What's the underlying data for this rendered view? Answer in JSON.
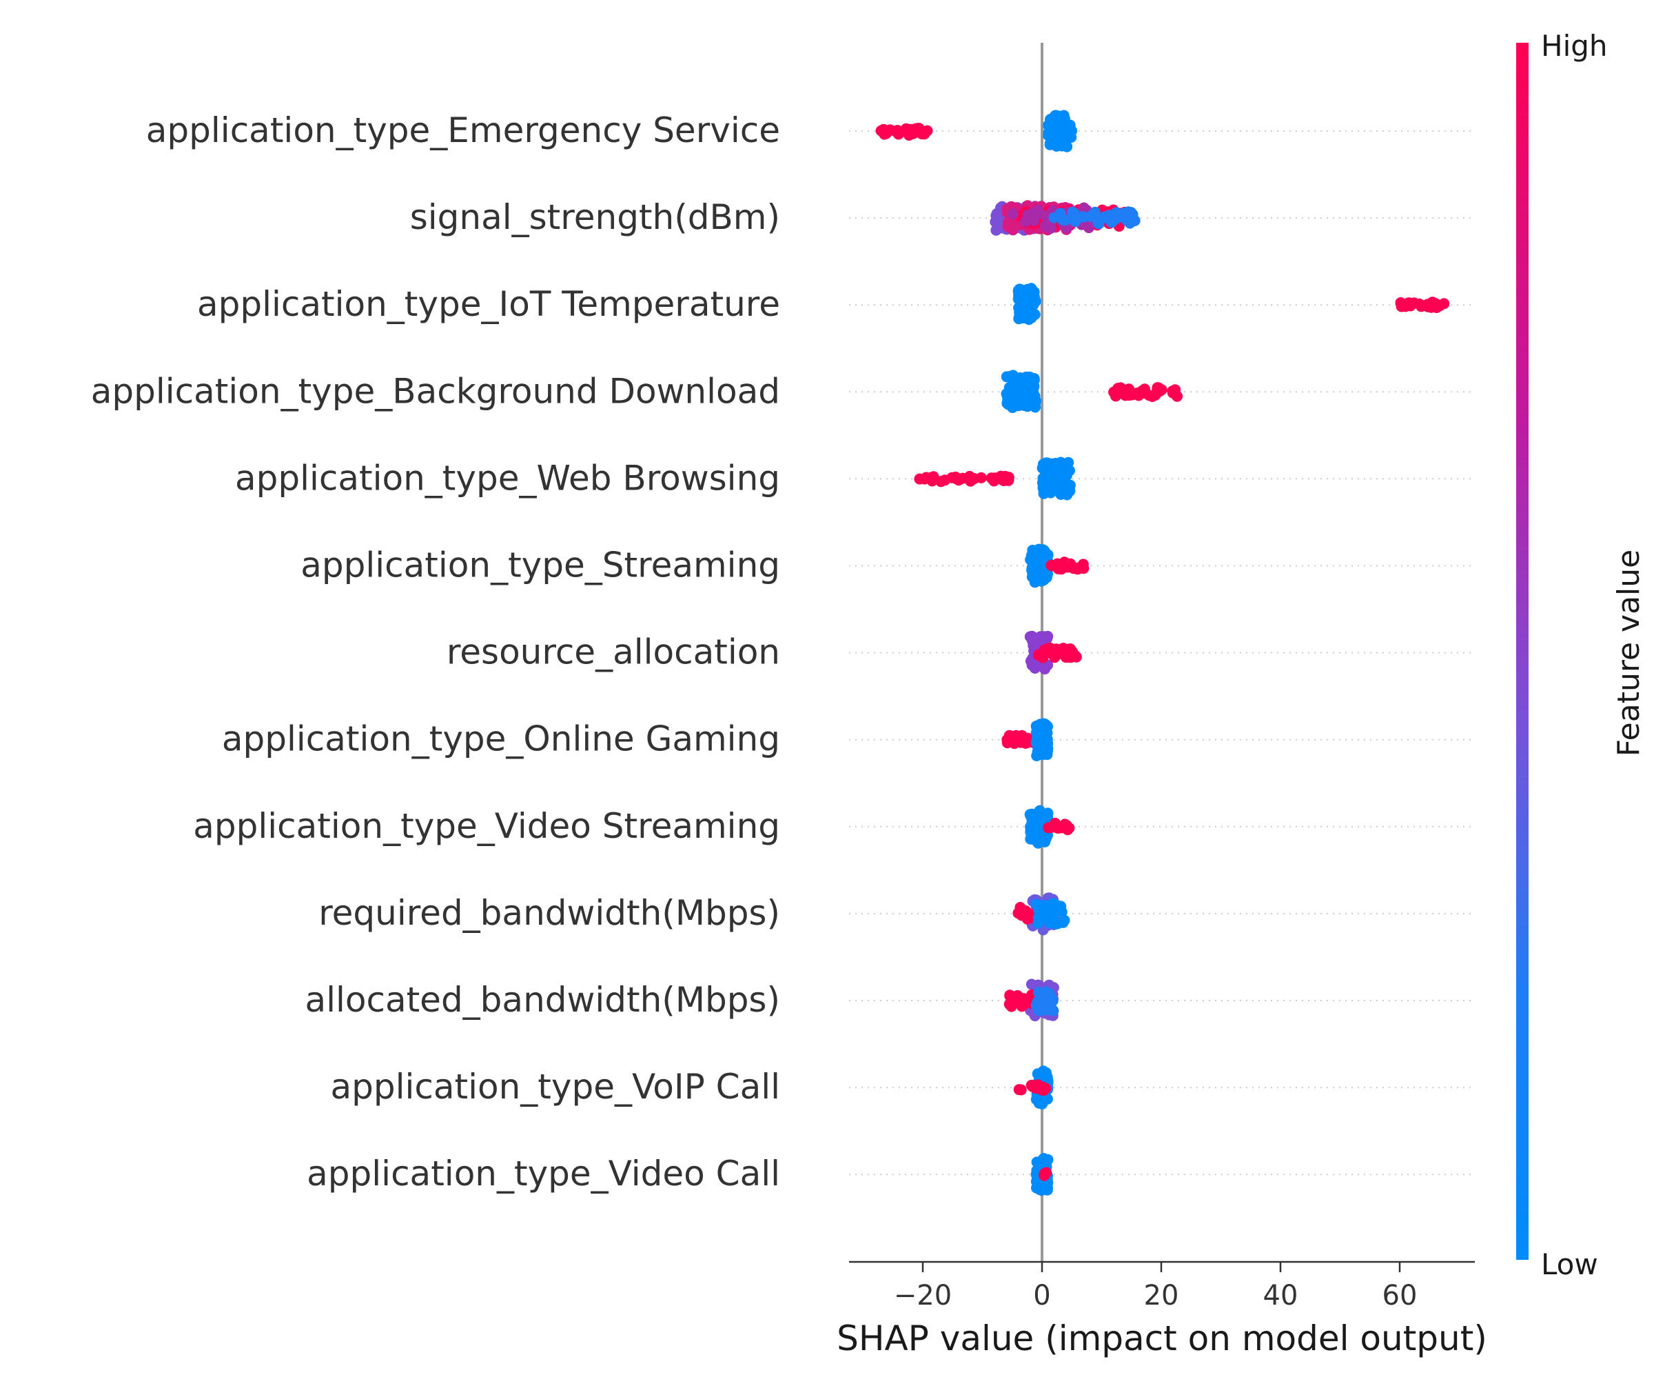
{
  "chart_data": {
    "type": "scatter",
    "title": "",
    "xlabel": "SHAP value (impact on model output)",
    "ylabel": "",
    "xlim": [
      -32,
      73
    ],
    "xticks": [
      -20,
      0,
      20,
      40,
      60
    ],
    "xtick_labels": [
      "−20",
      "0",
      "20",
      "40",
      "60"
    ],
    "grid": "dotted horizontal row guides",
    "zero_line": 0,
    "colorbar": {
      "label": "Feature value",
      "high_label": "High",
      "low_label": "Low",
      "high_color": "#ff0052",
      "low_color": "#008bfb",
      "placement": "right"
    },
    "features": [
      {
        "name": "application_type_Emergency Service",
        "groups": [
          {
            "color": "#ff0052",
            "min": -28,
            "max": -19,
            "count": 22,
            "spread": 0.1
          },
          {
            "color": "#008bfb",
            "min": 1,
            "max": 5,
            "count": 70,
            "spread": 0.38
          }
        ]
      },
      {
        "name": "signal_strength(dBm)",
        "groups": [
          {
            "color": "#7b4fd8",
            "min": -8,
            "max": -1,
            "count": 60,
            "spread": 0.3
          },
          {
            "color": "#d91a80",
            "min": -6,
            "max": 5,
            "count": 70,
            "spread": 0.3
          },
          {
            "color": "#ff0052",
            "min": -4,
            "max": 15,
            "count": 60,
            "spread": 0.2
          },
          {
            "color": "#a82aa8",
            "min": -5,
            "max": 8,
            "count": 30,
            "spread": 0.25
          },
          {
            "color": "#1f7ef6",
            "min": 2,
            "max": 16,
            "count": 40,
            "spread": 0.15
          }
        ]
      },
      {
        "name": "application_type_IoT Temperature",
        "groups": [
          {
            "color": "#008bfb",
            "min": -4,
            "max": -1,
            "count": 70,
            "spread": 0.4
          },
          {
            "color": "#ff0052",
            "min": 60,
            "max": 68,
            "count": 20,
            "spread": 0.07
          }
        ]
      },
      {
        "name": "application_type_Background Download",
        "groups": [
          {
            "color": "#008bfb",
            "min": -6,
            "max": -1,
            "count": 70,
            "spread": 0.4
          },
          {
            "color": "#ff0052",
            "min": 12,
            "max": 23,
            "count": 30,
            "spread": 0.12
          }
        ]
      },
      {
        "name": "application_type_Web Browsing",
        "groups": [
          {
            "color": "#ff0052",
            "min": -21,
            "max": -5,
            "count": 32,
            "spread": 0.07
          },
          {
            "color": "#008bfb",
            "min": 0,
            "max": 5,
            "count": 70,
            "spread": 0.4
          }
        ]
      },
      {
        "name": "application_type_Streaming",
        "groups": [
          {
            "color": "#008bfb",
            "min": -2,
            "max": 1,
            "count": 70,
            "spread": 0.4
          },
          {
            "color": "#ff0052",
            "min": 1,
            "max": 7,
            "count": 20,
            "spread": 0.1
          }
        ]
      },
      {
        "name": "resource_allocation",
        "groups": [
          {
            "color": "#8a3fd0",
            "min": -2,
            "max": 1,
            "count": 60,
            "spread": 0.4
          },
          {
            "color": "#ff0052",
            "min": -1,
            "max": 6,
            "count": 30,
            "spread": 0.12
          }
        ]
      },
      {
        "name": "application_type_Online Gaming",
        "groups": [
          {
            "color": "#ff0052",
            "min": -6,
            "max": -1,
            "count": 20,
            "spread": 0.1
          },
          {
            "color": "#008bfb",
            "min": -1,
            "max": 1,
            "count": 70,
            "spread": 0.4
          }
        ]
      },
      {
        "name": "application_type_Video Streaming",
        "groups": [
          {
            "color": "#008bfb",
            "min": -2,
            "max": 1,
            "count": 70,
            "spread": 0.4
          },
          {
            "color": "#ff0052",
            "min": 1,
            "max": 5,
            "count": 15,
            "spread": 0.1
          }
        ]
      },
      {
        "name": "required_bandwidth(Mbps)",
        "groups": [
          {
            "color": "#6a5ce0",
            "min": -2,
            "max": 2,
            "count": 40,
            "spread": 0.4
          },
          {
            "color": "#ff0052",
            "min": -4,
            "max": 2,
            "count": 30,
            "spread": 0.15
          },
          {
            "color": "#008bfb",
            "min": -1,
            "max": 4,
            "count": 30,
            "spread": 0.25
          }
        ]
      },
      {
        "name": "allocated_bandwidth(Mbps)",
        "groups": [
          {
            "color": "#7b4fd8",
            "min": -2,
            "max": 2,
            "count": 40,
            "spread": 0.4
          },
          {
            "color": "#ff0052",
            "min": -6,
            "max": 1,
            "count": 30,
            "spread": 0.15
          },
          {
            "color": "#1f7ef6",
            "min": -1,
            "max": 2,
            "count": 25,
            "spread": 0.25
          }
        ]
      },
      {
        "name": "application_type_VoIP Call",
        "groups": [
          {
            "color": "#008bfb",
            "min": -1,
            "max": 1,
            "count": 60,
            "spread": 0.4
          },
          {
            "color": "#ff0052",
            "min": -4,
            "max": 1,
            "count": 15,
            "spread": 0.08
          }
        ]
      },
      {
        "name": "application_type_Video Call",
        "groups": [
          {
            "color": "#008bfb",
            "min": -1,
            "max": 1,
            "count": 60,
            "spread": 0.4
          },
          {
            "color": "#ff0052",
            "min": 0,
            "max": 1,
            "count": 5,
            "spread": 0.05
          }
        ]
      }
    ]
  }
}
